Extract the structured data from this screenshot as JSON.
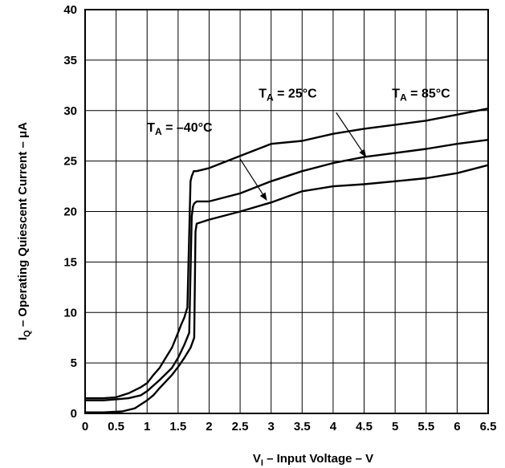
{
  "chart_data": {
    "type": "line",
    "xlabel": {
      "main": "V",
      "sub": "I",
      "rest": " – Input Voltage – V"
    },
    "ylabel": {
      "main": "I",
      "sub": "Q",
      "rest": "  – Operating Quiescent Current –  μA"
    },
    "xlim": [
      0,
      6.5
    ],
    "ylim": [
      0,
      40
    ],
    "xticks": [
      "0",
      "0.5",
      "1",
      "1.5",
      "2",
      "2.5",
      "3",
      "3.5",
      "4",
      "4.5",
      "5",
      "5.5",
      "6",
      "6.5"
    ],
    "yticks": [
      "0",
      "5",
      "10",
      "15",
      "20",
      "25",
      "30",
      "35",
      "40"
    ],
    "grid": true,
    "series": [
      {
        "name": "T_A = –40°C",
        "x": [
          0,
          0.3,
          0.5,
          0.7,
          0.9,
          1.0,
          1.1,
          1.2,
          1.3,
          1.4,
          1.5,
          1.55,
          1.6,
          1.65,
          1.7,
          1.72,
          1.74,
          1.75,
          1.8,
          2.0,
          2.5,
          3.0,
          3.5,
          4.0,
          4.5,
          5.0,
          5.5,
          6.0,
          6.5
        ],
        "y": [
          1.5,
          1.5,
          1.6,
          2.0,
          2.6,
          3.0,
          3.8,
          4.5,
          5.5,
          6.5,
          8.0,
          8.8,
          9.5,
          10.5,
          23.0,
          23.5,
          23.8,
          24.0,
          24.0,
          24.3,
          25.5,
          26.7,
          27.0,
          27.7,
          28.2,
          28.6,
          29.0,
          29.6,
          30.2
        ]
      },
      {
        "name": "T_A = 25°C",
        "x": [
          0,
          0.3,
          0.5,
          0.7,
          0.9,
          1.0,
          1.2,
          1.4,
          1.5,
          1.6,
          1.68,
          1.72,
          1.74,
          1.76,
          1.78,
          1.8,
          2.0,
          2.5,
          3.0,
          3.5,
          4.0,
          4.5,
          5.0,
          5.5,
          6.0,
          6.5
        ],
        "y": [
          1.3,
          1.3,
          1.4,
          1.5,
          1.8,
          2.2,
          3.3,
          4.5,
          5.5,
          6.8,
          8.0,
          19.5,
          20.5,
          20.8,
          20.9,
          21.0,
          21.0,
          21.8,
          23.0,
          24.0,
          24.8,
          25.4,
          25.8,
          26.2,
          26.7,
          27.1
        ]
      },
      {
        "name": "T_A = 85°C",
        "x": [
          0,
          0.3,
          0.6,
          0.8,
          0.9,
          1.0,
          1.1,
          1.2,
          1.4,
          1.5,
          1.6,
          1.7,
          1.76,
          1.78,
          1.8,
          2.0,
          2.5,
          3.0,
          3.5,
          4.0,
          4.5,
          5.0,
          5.5,
          6.0,
          6.5
        ],
        "y": [
          0.1,
          0.1,
          0.2,
          0.5,
          0.9,
          1.3,
          1.8,
          2.5,
          3.8,
          4.6,
          5.5,
          6.5,
          7.5,
          18.0,
          18.8,
          19.2,
          20.0,
          20.9,
          22.0,
          22.5,
          22.7,
          23.0,
          23.3,
          23.8,
          24.6
        ]
      }
    ],
    "annotations": [
      {
        "base": "T",
        "sub": "A",
        "rest": " = –40°C",
        "label_at": [
          1.0,
          27.9
        ],
        "arrow_from": [
          2.5,
          25.2
        ],
        "arrow_to": [
          2.92,
          21.2
        ]
      },
      {
        "base": "T",
        "sub": "A",
        "rest": " = 25°C",
        "label_at": [
          2.8,
          31.3
        ],
        "arrow_from": [
          4.05,
          29.8
        ],
        "arrow_to": [
          4.52,
          25.5
        ]
      },
      {
        "base": "T",
        "sub": "A",
        "rest": " = 85°C",
        "label_at": [
          4.95,
          31.3
        ],
        "arrow_from": null,
        "arrow_to": null
      }
    ]
  }
}
